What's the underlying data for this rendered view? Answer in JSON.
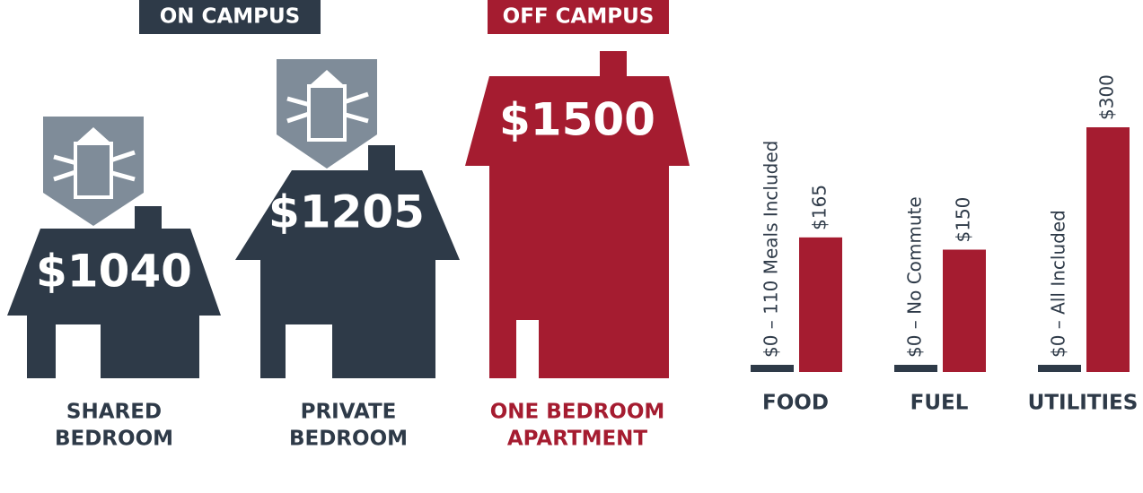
{
  "chart_data": {
    "type": "bar",
    "categories": [
      "FOOD",
      "FUEL",
      "UTILITIES"
    ],
    "series": [
      {
        "name": "ON CAMPUS",
        "color": "#2e3a48",
        "values": [
          0,
          0,
          0
        ],
        "value_labels": [
          "$0 – 110 Meals Included",
          "$0 – No Commute",
          "$0 – All Included"
        ]
      },
      {
        "name": "OFF CAMPUS",
        "color": "#a51c30",
        "values": [
          165,
          150,
          300
        ],
        "value_labels": [
          "$165",
          "$150",
          "$300"
        ]
      }
    ]
  },
  "housing": [
    {
      "price": "$1040",
      "label": [
        "SHARED",
        "BEDROOM"
      ]
    },
    {
      "price": "$1205",
      "label": [
        "PRIVATE",
        "BEDROOM"
      ]
    },
    {
      "price": "$1500",
      "label": [
        "ONE BEDROOM",
        "APARTMENT"
      ]
    }
  ]
}
